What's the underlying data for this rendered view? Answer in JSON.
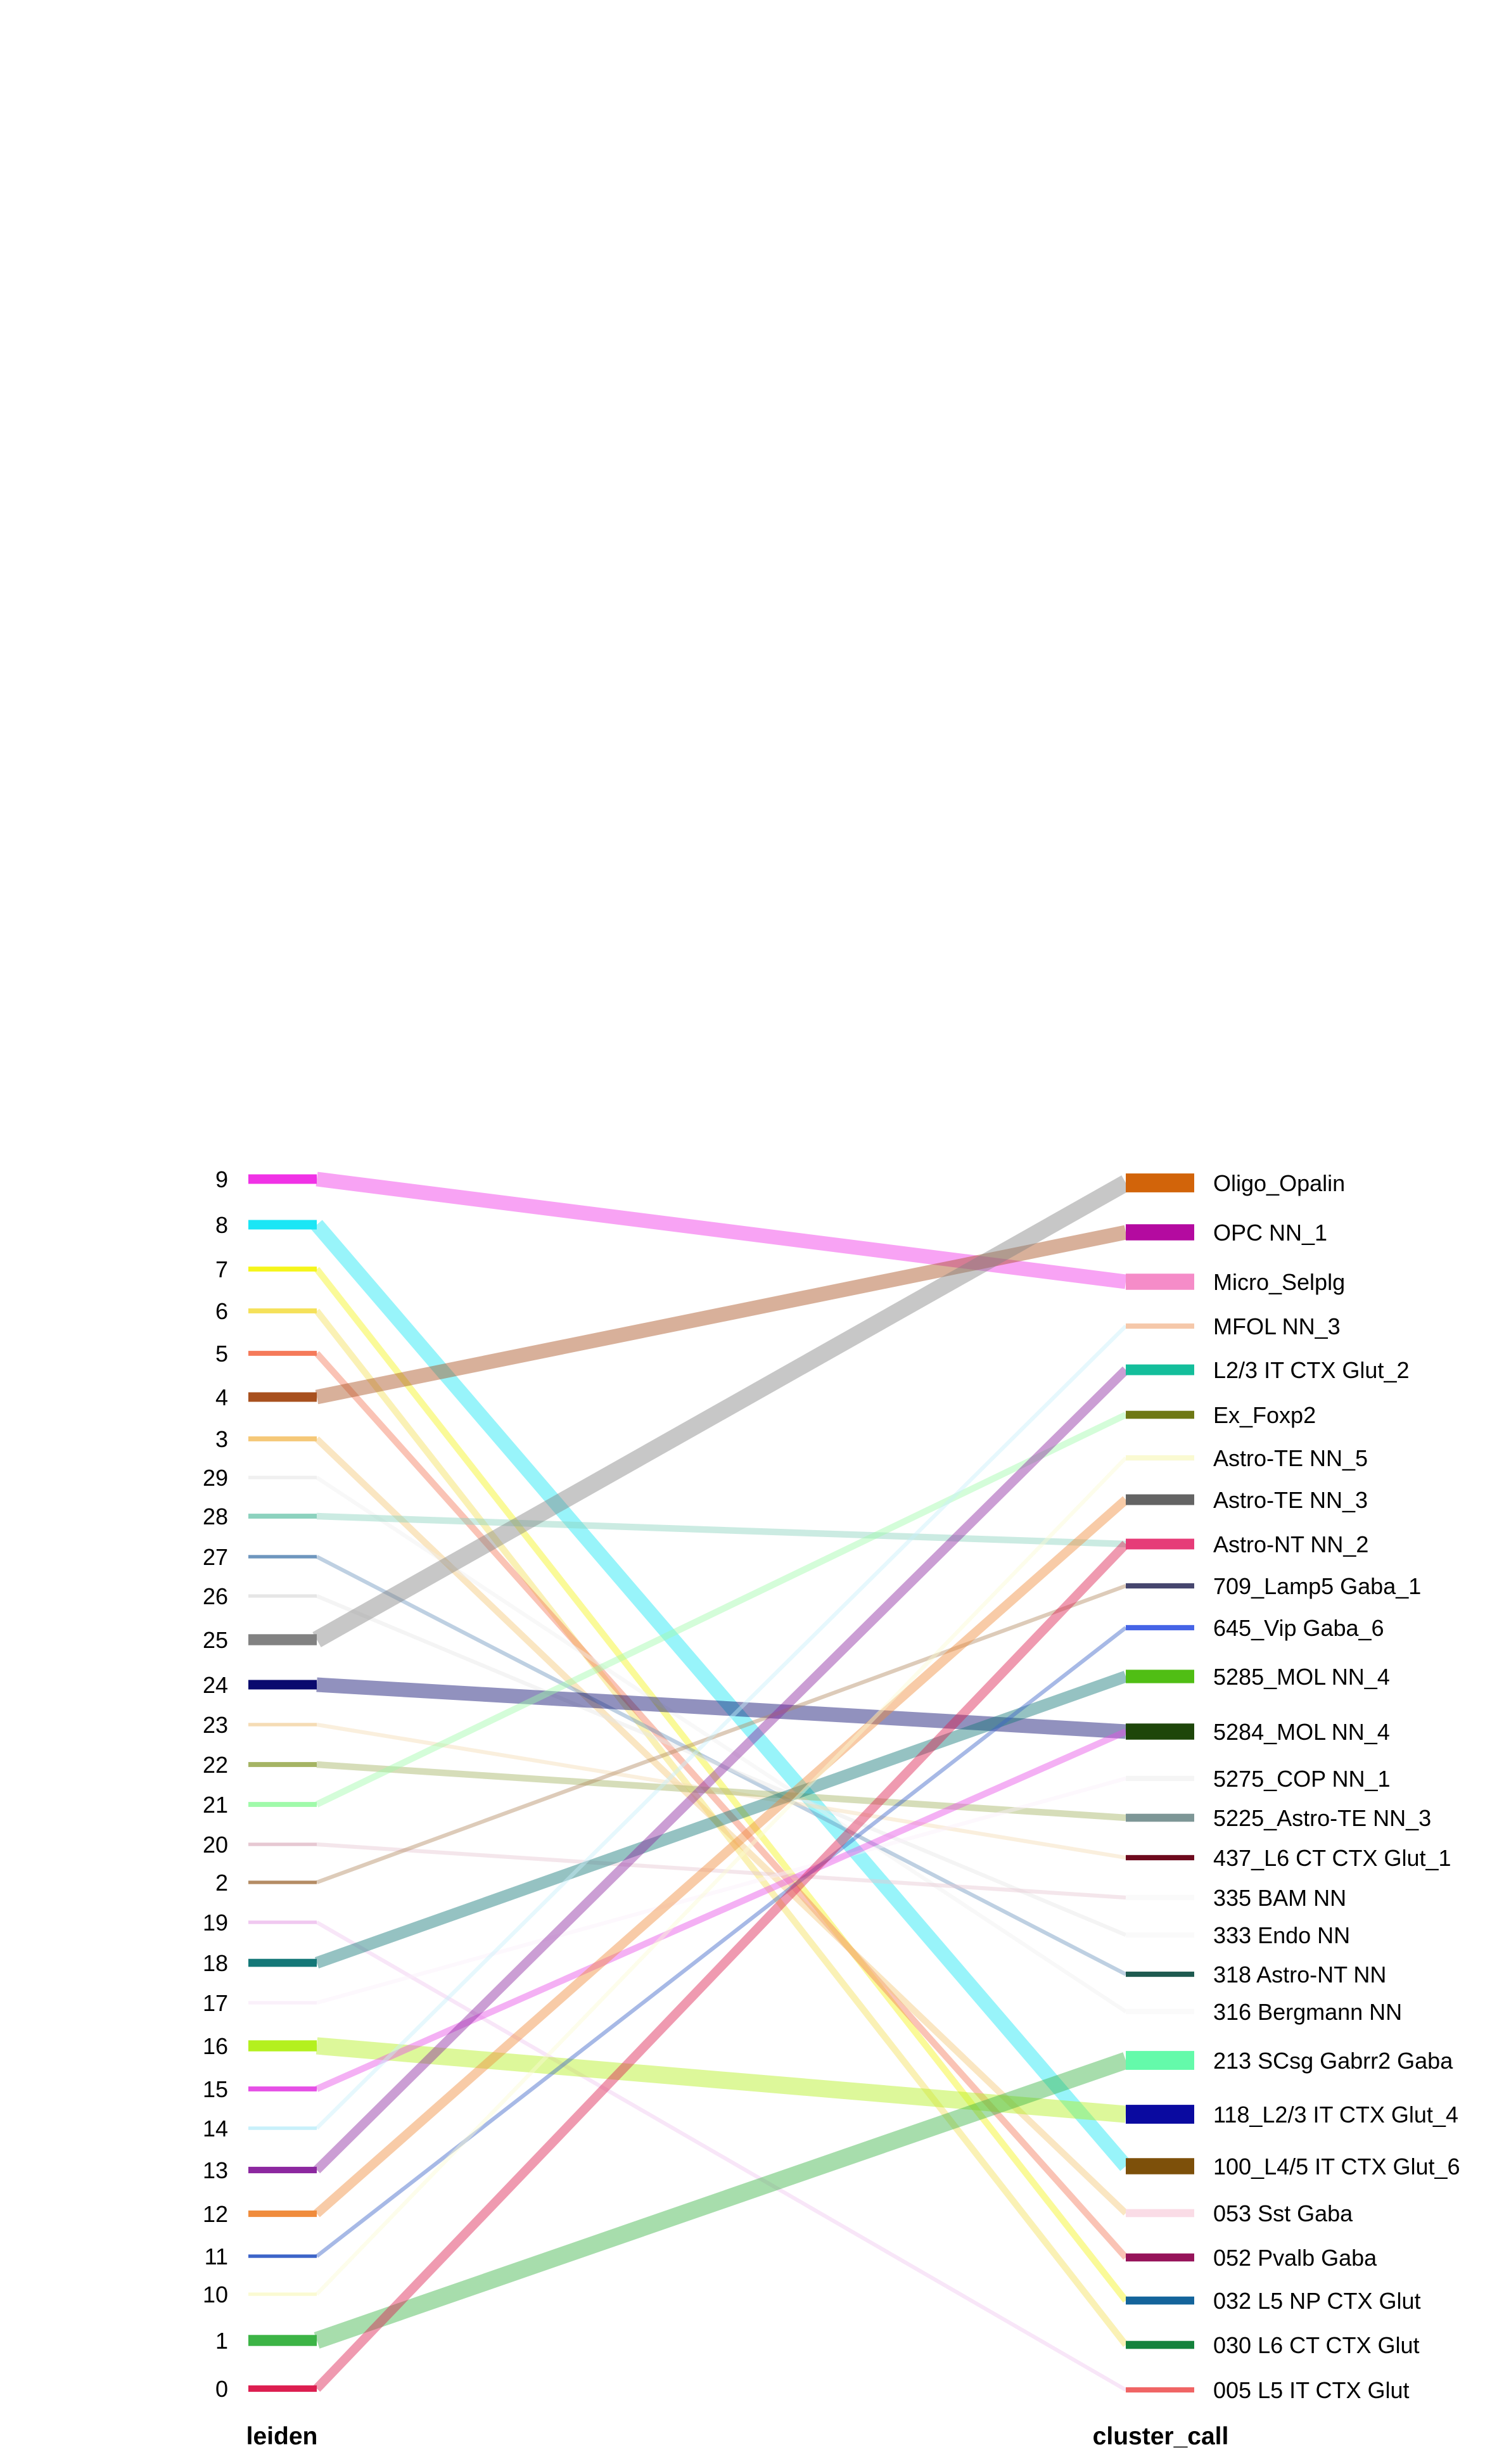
{
  "left_axis": {
    "title": "leiden",
    "nodes": [
      {
        "label": "9",
        "color": "#f032e6"
      },
      {
        "label": "8",
        "color": "#1be6f5"
      },
      {
        "label": "7",
        "color": "#f5f51b"
      },
      {
        "label": "6",
        "color": "#f5e15a"
      },
      {
        "label": "5",
        "color": "#f57a5a"
      },
      {
        "label": "4",
        "color": "#a8501e"
      },
      {
        "label": "3",
        "color": "#f5c878"
      },
      {
        "label": "29",
        "color": "#f0f0f0"
      },
      {
        "label": "28",
        "color": "#8cd2be"
      },
      {
        "label": "27",
        "color": "#6e96be"
      },
      {
        "label": "26",
        "color": "#e6e6e6"
      },
      {
        "label": "25",
        "color": "#828282"
      },
      {
        "label": "24",
        "color": "#0a0a6e"
      },
      {
        "label": "23",
        "color": "#f5dcb4"
      },
      {
        "label": "22",
        "color": "#a5b464"
      },
      {
        "label": "21",
        "color": "#a0faaa"
      },
      {
        "label": "20",
        "color": "#e6c8d2"
      },
      {
        "label": "2",
        "color": "#b48c64"
      },
      {
        "label": "19",
        "color": "#f0c8f0"
      },
      {
        "label": "18",
        "color": "#147878"
      },
      {
        "label": "17",
        "color": "#faf0fa"
      },
      {
        "label": "16",
        "color": "#b4f01e"
      },
      {
        "label": "15",
        "color": "#e650e6"
      },
      {
        "label": "14",
        "color": "#c8f0fa"
      },
      {
        "label": "13",
        "color": "#8c28a0"
      },
      {
        "label": "12",
        "color": "#f08c3c"
      },
      {
        "label": "11",
        "color": "#3c64c8"
      },
      {
        "label": "10",
        "color": "#fafad2"
      },
      {
        "label": "1",
        "color": "#3cb446"
      },
      {
        "label": "0",
        "color": "#dc1e50"
      }
    ]
  },
  "right_axis": {
    "title": "cluster_call",
    "nodes": [
      {
        "label": "Oligo_Opalin",
        "color": "#d2640a"
      },
      {
        "label": "OPC NN_1",
        "color": "#b40aa0"
      },
      {
        "label": "Micro_Selplg",
        "color": "#f58cc8"
      },
      {
        "label": "MFOL NN_3",
        "color": "#f5c8aa"
      },
      {
        "label": "L2/3 IT CTX Glut_2",
        "color": "#14be9b"
      },
      {
        "label": "Ex_Foxp2",
        "color": "#6e7814"
      },
      {
        "label": "Astro-TE NN_5",
        "color": "#fafad2"
      },
      {
        "label": "Astro-TE NN_3",
        "color": "#646464"
      },
      {
        "label": "Astro-NT NN_2",
        "color": "#e63c78"
      },
      {
        "label": "709_Lamp5 Gaba_1",
        "color": "#46466e"
      },
      {
        "label": "645_Vip Gaba_6",
        "color": "#4664e6"
      },
      {
        "label": "5285_MOL NN_4",
        "color": "#50be14"
      },
      {
        "label": "5284_MOL NN_4",
        "color": "#1e460a"
      },
      {
        "label": "5275_COP NN_1",
        "color": "#f5f5f5"
      },
      {
        "label": "5225_Astro-TE NN_3",
        "color": "#7d9696"
      },
      {
        "label": "437_L6 CT CTX Glut_1",
        "color": "#6e0a1e"
      },
      {
        "label": "335 BAM NN",
        "color": "#fafafa"
      },
      {
        "label": "333 Endo NN",
        "color": "#fafafa"
      },
      {
        "label": "318 Astro-NT NN",
        "color": "#1e5a50"
      },
      {
        "label": "316 Bergmann NN",
        "color": "#fafafa"
      },
      {
        "label": "213 SCsg Gabrr2 Gaba",
        "color": "#64faaa"
      },
      {
        "label": "118_L2/3 IT CTX Glut_4",
        "color": "#0a0aa0"
      },
      {
        "label": "100_L4/5 IT CTX Glut_6",
        "color": "#7d500a"
      },
      {
        "label": "053 Sst Gaba",
        "color": "#fadce6"
      },
      {
        "label": "052 Pvalb Gaba",
        "color": "#96145a"
      },
      {
        "label": "032 L5 NP CTX Glut",
        "color": "#14649b"
      },
      {
        "label": "030 L6 CT CTX Glut",
        "color": "#14823c"
      },
      {
        "label": "005 L5 IT CTX Glut",
        "color": "#f06464"
      }
    ]
  },
  "flows": [
    {
      "from": "9",
      "to": "Micro_Selplg",
      "weight": 5
    },
    {
      "from": "8",
      "to": "100_L4/5 IT CTX Glut_6",
      "weight": 5
    },
    {
      "from": "7",
      "to": "032 L5 NP CTX Glut",
      "weight": 2
    },
    {
      "from": "6",
      "to": "030 L6 CT CTX Glut",
      "weight": 2
    },
    {
      "from": "5",
      "to": "052 Pvalb Gaba",
      "weight": 2
    },
    {
      "from": "4",
      "to": "OPC NN_1",
      "weight": 5
    },
    {
      "from": "3",
      "to": "053 Sst Gaba",
      "weight": 2
    },
    {
      "from": "29",
      "to": "316 Bergmann NN",
      "weight": 1
    },
    {
      "from": "28",
      "to": "Astro-NT NN_2",
      "weight": 2
    },
    {
      "from": "27",
      "to": "318 Astro-NT NN",
      "weight": 1
    },
    {
      "from": "26",
      "to": "333 Endo NN",
      "weight": 1
    },
    {
      "from": "25",
      "to": "Oligo_Opalin",
      "weight": 6
    },
    {
      "from": "24",
      "to": "5284_MOL NN_4",
      "weight": 5
    },
    {
      "from": "23",
      "to": "437_L6 CT CTX Glut_1",
      "weight": 1
    },
    {
      "from": "22",
      "to": "5225_Astro-TE NN_3",
      "weight": 2
    },
    {
      "from": "21",
      "to": "Ex_Foxp2",
      "weight": 2
    },
    {
      "from": "20",
      "to": "335 BAM NN",
      "weight": 1
    },
    {
      "from": "2",
      "to": "709_Lamp5 Gaba_1",
      "weight": 1
    },
    {
      "from": "19",
      "to": "005 L5 IT CTX Glut",
      "weight": 1
    },
    {
      "from": "18",
      "to": "5285_MOL NN_4",
      "weight": 4
    },
    {
      "from": "17",
      "to": "5275_COP NN_1",
      "weight": 1
    },
    {
      "from": "16",
      "to": "118_L2/3 IT CTX Glut_4",
      "weight": 6
    },
    {
      "from": "15",
      "to": "5284_MOL NN_4",
      "weight": 2
    },
    {
      "from": "14",
      "to": "MFOL NN_3",
      "weight": 1
    },
    {
      "from": "13",
      "to": "L2/3 IT CTX Glut_2",
      "weight": 3
    },
    {
      "from": "12",
      "to": "Astro-TE NN_3",
      "weight": 3
    },
    {
      "from": "11",
      "to": "645_Vip Gaba_6",
      "weight": 1
    },
    {
      "from": "10",
      "to": "Astro-TE NN_5",
      "weight": 1
    },
    {
      "from": "1",
      "to": "213 SCsg Gabrr2 Gaba",
      "weight": 6
    },
    {
      "from": "0",
      "to": "Astro-NT NN_2",
      "weight": 3
    }
  ]
}
